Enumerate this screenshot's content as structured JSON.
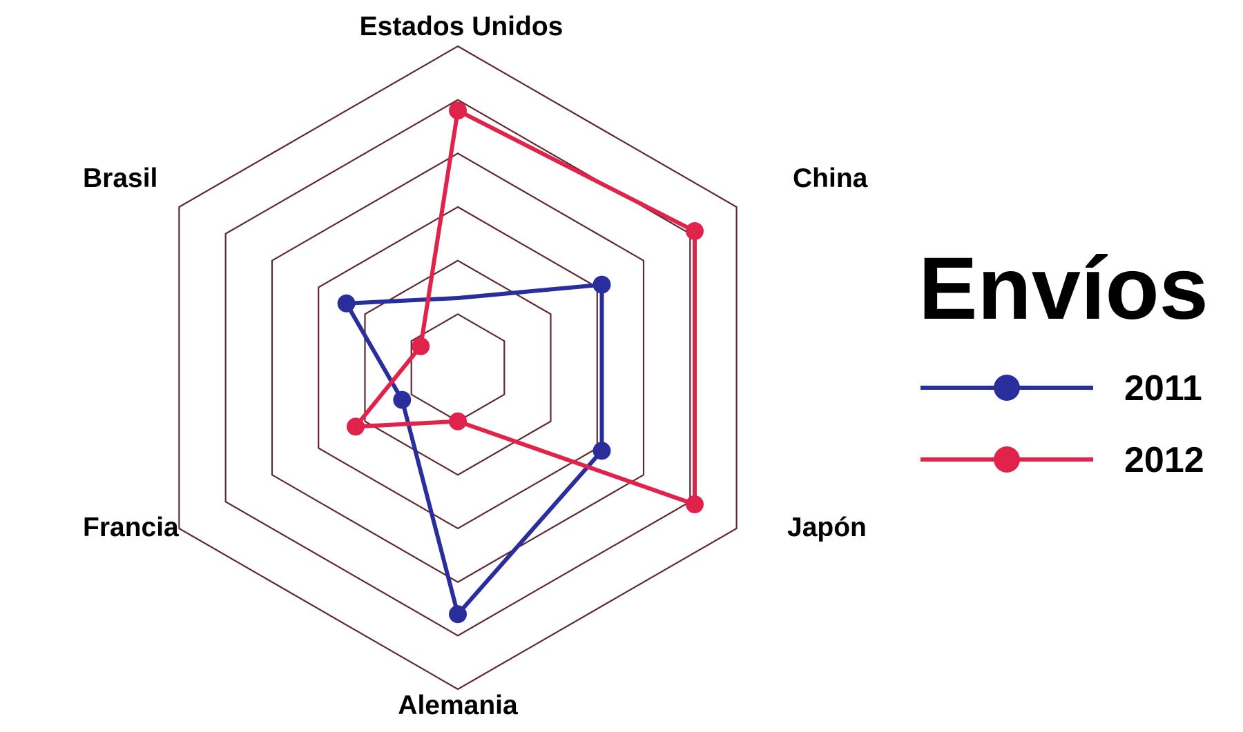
{
  "chart_data": {
    "type": "radar",
    "title": "",
    "legend": {
      "title": "Envíos",
      "placement": "right"
    },
    "categories": [
      "Estados Unidos",
      "China",
      "Japón",
      "Alemania",
      "Francia",
      "Brasil"
    ],
    "rmax": 6,
    "grid_levels": [
      1,
      2,
      3,
      4,
      5,
      6
    ],
    "grid_color": "#5c2a33",
    "series": [
      {
        "name": "2011",
        "color": "#2a2e9c",
        "values": [
          1.3,
          3.1,
          3.1,
          4.6,
          1.2,
          2.4
        ],
        "markers": [
          false,
          true,
          true,
          true,
          true,
          true
        ]
      },
      {
        "name": "2012",
        "color": "#e0234a",
        "values": [
          4.8,
          5.1,
          5.1,
          1.0,
          2.2,
          0.8
        ],
        "markers": [
          true,
          true,
          true,
          true,
          true,
          true
        ]
      }
    ]
  }
}
